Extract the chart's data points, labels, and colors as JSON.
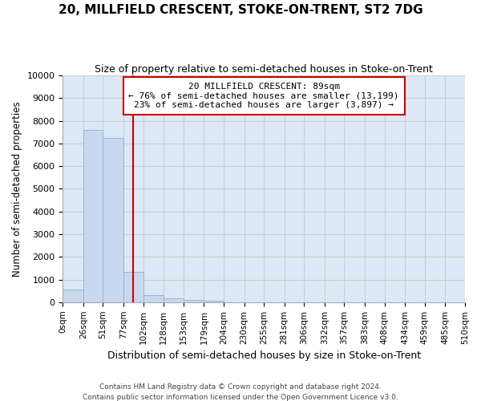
{
  "title": "20, MILLFIELD CRESCENT, STOKE-ON-TRENT, ST2 7DG",
  "subtitle": "Size of property relative to semi-detached houses in Stoke-on-Trent",
  "xlabel": "Distribution of semi-detached houses by size in Stoke-on-Trent",
  "ylabel": "Number of semi-detached properties",
  "bin_labels": [
    "0sqm",
    "26sqm",
    "51sqm",
    "77sqm",
    "102sqm",
    "128sqm",
    "153sqm",
    "179sqm",
    "204sqm",
    "230sqm",
    "255sqm",
    "281sqm",
    "306sqm",
    "332sqm",
    "357sqm",
    "383sqm",
    "408sqm",
    "434sqm",
    "459sqm",
    "485sqm",
    "510sqm"
  ],
  "bar_values": [
    560,
    7600,
    7250,
    1350,
    310,
    160,
    100,
    75,
    0,
    0,
    0,
    0,
    0,
    0,
    0,
    0,
    0,
    0,
    0,
    0
  ],
  "bar_color": "#c8d8ee",
  "bar_edge_color": "#8ab0d8",
  "property_line_x": 89,
  "pct_smaller": 76,
  "count_smaller": 13199,
  "pct_larger": 23,
  "count_larger": 3897,
  "vline_color": "#cc0000",
  "ylim": [
    0,
    10000
  ],
  "yticks": [
    0,
    1000,
    2000,
    3000,
    4000,
    5000,
    6000,
    7000,
    8000,
    9000,
    10000
  ],
  "grid_color": "#cccccc",
  "plot_bg_color": "#dce8f5",
  "fig_bg_color": "#ffffff",
  "footer": "Contains HM Land Registry data © Crown copyright and database right 2024.\nContains public sector information licensed under the Open Government Licence v3.0.",
  "bin_edges": [
    0,
    26,
    51,
    77,
    102,
    128,
    153,
    179,
    204,
    230,
    255,
    281,
    306,
    332,
    357,
    383,
    408,
    434,
    459,
    485,
    510
  ]
}
